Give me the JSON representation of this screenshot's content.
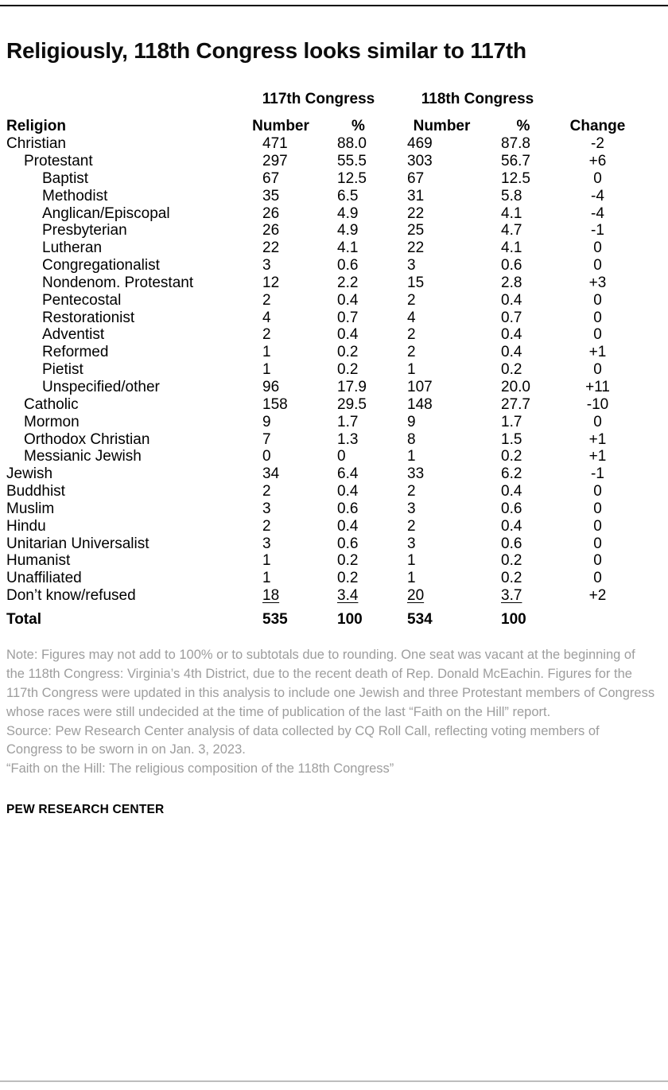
{
  "page": {
    "title": "Religiously, 118th Congress looks similar to 117th",
    "footer": "PEW RESEARCH CENTER"
  },
  "chart_data": {
    "type": "table",
    "title": "Religiously, 118th Congress looks similar to 117th",
    "group_headers": {
      "congress117": "117th Congress",
      "congress118": "118th Congress"
    },
    "columns": {
      "religion": "Religion",
      "number117": "Number",
      "percent117": "%",
      "number118": "Number",
      "percent118": "%",
      "change": "Change"
    },
    "rows": [
      {
        "label": "Christian",
        "indent": 0,
        "n117": "471",
        "p117": "88.0",
        "n118": "469",
        "p118": "87.8",
        "change": "-2"
      },
      {
        "label": "Protestant",
        "indent": 1,
        "n117": "297",
        "p117": "55.5",
        "n118": "303",
        "p118": "56.7",
        "change": "+6"
      },
      {
        "label": "Baptist",
        "indent": 2,
        "n117": "67",
        "p117": "12.5",
        "n118": "67",
        "p118": "12.5",
        "change": "0"
      },
      {
        "label": "Methodist",
        "indent": 2,
        "n117": "35",
        "p117": "6.5",
        "n118": "31",
        "p118": "5.8",
        "change": "-4"
      },
      {
        "label": "Anglican/Episcopal",
        "indent": 2,
        "n117": "26",
        "p117": "4.9",
        "n118": "22",
        "p118": "4.1",
        "change": "-4"
      },
      {
        "label": "Presbyterian",
        "indent": 2,
        "n117": "26",
        "p117": "4.9",
        "n118": "25",
        "p118": "4.7",
        "change": "-1"
      },
      {
        "label": "Lutheran",
        "indent": 2,
        "n117": "22",
        "p117": "4.1",
        "n118": "22",
        "p118": "4.1",
        "change": "0"
      },
      {
        "label": "Congregationalist",
        "indent": 2,
        "n117": "3",
        "p117": "0.6",
        "n118": "3",
        "p118": "0.6",
        "change": "0"
      },
      {
        "label": "Nondenom. Protestant",
        "indent": 2,
        "n117": "12",
        "p117": "2.2",
        "n118": "15",
        "p118": "2.8",
        "change": "+3"
      },
      {
        "label": "Pentecostal",
        "indent": 2,
        "n117": "2",
        "p117": "0.4",
        "n118": "2",
        "p118": "0.4",
        "change": "0"
      },
      {
        "label": "Restorationist",
        "indent": 2,
        "n117": "4",
        "p117": "0.7",
        "n118": "4",
        "p118": "0.7",
        "change": "0"
      },
      {
        "label": "Adventist",
        "indent": 2,
        "n117": "2",
        "p117": "0.4",
        "n118": "2",
        "p118": "0.4",
        "change": "0"
      },
      {
        "label": "Reformed",
        "indent": 2,
        "n117": "1",
        "p117": "0.2",
        "n118": "2",
        "p118": "0.4",
        "change": "+1"
      },
      {
        "label": "Pietist",
        "indent": 2,
        "n117": "1",
        "p117": "0.2",
        "n118": "1",
        "p118": "0.2",
        "change": "0"
      },
      {
        "label": "Unspecified/other",
        "indent": 2,
        "n117": "96",
        "p117": "17.9",
        "n118": "107",
        "p118": "20.0",
        "change": "+11"
      },
      {
        "label": "Catholic",
        "indent": 1,
        "n117": "158",
        "p117": "29.5",
        "n118": "148",
        "p118": "27.7",
        "change": "-10"
      },
      {
        "label": "Mormon",
        "indent": 1,
        "n117": "9",
        "p117": "1.7",
        "n118": "9",
        "p118": "1.7",
        "change": "0"
      },
      {
        "label": "Orthodox Christian",
        "indent": 1,
        "n117": "7",
        "p117": "1.3",
        "n118": "8",
        "p118": "1.5",
        "change": "+1"
      },
      {
        "label": "Messianic Jewish",
        "indent": 1,
        "n117": "0",
        "p117": "0",
        "n118": "1",
        "p118": "0.2",
        "change": "+1"
      },
      {
        "label": "Jewish",
        "indent": 0,
        "n117": "34",
        "p117": "6.4",
        "n118": "33",
        "p118": "6.2",
        "change": "-1"
      },
      {
        "label": "Buddhist",
        "indent": 0,
        "n117": "2",
        "p117": "0.4",
        "n118": "2",
        "p118": "0.4",
        "change": "0"
      },
      {
        "label": "Muslim",
        "indent": 0,
        "n117": "3",
        "p117": "0.6",
        "n118": "3",
        "p118": "0.6",
        "change": "0"
      },
      {
        "label": "Hindu",
        "indent": 0,
        "n117": "2",
        "p117": "0.4",
        "n118": "2",
        "p118": "0.4",
        "change": "0"
      },
      {
        "label": "Unitarian Universalist",
        "indent": 0,
        "n117": "3",
        "p117": "0.6",
        "n118": "3",
        "p118": "0.6",
        "change": "0"
      },
      {
        "label": "Humanist",
        "indent": 0,
        "n117": "1",
        "p117": "0.2",
        "n118": "1",
        "p118": "0.2",
        "change": "0"
      },
      {
        "label": "Unaffiliated",
        "indent": 0,
        "n117": "1",
        "p117": "0.2",
        "n118": "1",
        "p118": "0.2",
        "change": "0"
      },
      {
        "label": "Don’t know/refused",
        "indent": 0,
        "n117": "18",
        "p117": "3.4",
        "n118": "20",
        "p118": "3.7",
        "change": "+2",
        "underline": true
      },
      {
        "label": "Total",
        "indent": 0,
        "n117": "535",
        "p117": "100",
        "n118": "534",
        "p118": "100",
        "change": "",
        "bold": true
      }
    ]
  },
  "notes": {
    "note": "Note: Figures may not add to 100% or to subtotals due to rounding. One seat was vacant at the beginning of the 118th Congress: Virginia’s 4th District, due to the recent death of Rep. Donald McEachin. Figures for the 117th Congress were updated in this analysis to include one Jewish and three Protestant members of Congress whose races were still undecided at the time of publication of the last “Faith on the Hill” report.",
    "source": "Source: Pew Research Center analysis of data collected by CQ Roll Call, reflecting voting members of Congress to be sworn in on Jan. 3, 2023.",
    "citation": "“Faith on the Hill: The religious composition of the 118th Congress”"
  }
}
